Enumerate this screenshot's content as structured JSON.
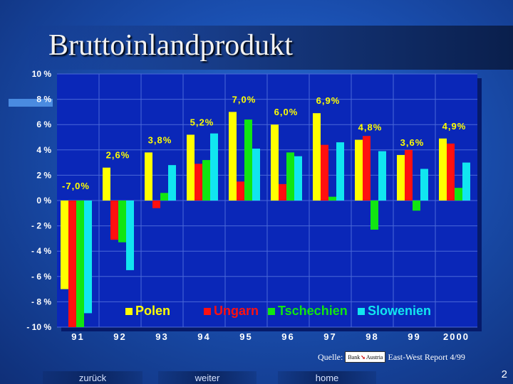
{
  "slide": {
    "title": "Bruttoinlandprodukt",
    "source_prefix": "Quelle:",
    "source_logo_text_1": "Bank",
    "source_logo_text_2": "Austria",
    "source_suffix": "East-West Report 4/99",
    "nav": {
      "back": "zurück",
      "next": "weiter",
      "home": "home"
    },
    "page_number": "2"
  },
  "colors": {
    "Polen": "#ffff00",
    "Ungarn": "#ff1010",
    "Tschechien": "#11e611",
    "Slowenien": "#11e6f0",
    "plot_bg": "#0a27b8",
    "grid": "#4a68d8"
  },
  "chart_data": {
    "type": "bar",
    "title": "Bruttoinlandprodukt",
    "categories": [
      "91",
      "92",
      "93",
      "94",
      "95",
      "96",
      "97",
      "98",
      "99",
      "2000"
    ],
    "series": [
      {
        "name": "Polen",
        "values": [
          -7.0,
          2.6,
          3.8,
          5.2,
          7.0,
          6.0,
          6.9,
          4.8,
          3.6,
          4.9
        ]
      },
      {
        "name": "Ungarn",
        "values": [
          -10.0,
          -3.1,
          -0.6,
          2.9,
          1.5,
          1.3,
          4.4,
          5.1,
          4.0,
          4.5
        ]
      },
      {
        "name": "Tschechien",
        "values": [
          -10.0,
          -3.3,
          0.6,
          3.2,
          6.4,
          3.8,
          0.3,
          -2.3,
          -0.8,
          1.0
        ]
      },
      {
        "name": "Slowenien",
        "values": [
          -8.9,
          -5.5,
          2.8,
          5.3,
          4.1,
          3.5,
          4.6,
          3.9,
          2.5,
          3.0
        ]
      }
    ],
    "data_labels": [
      "-7,0%",
      "2,6%",
      "3,8%",
      "5,2%",
      "7,0%",
      "6,0%",
      "6,9%",
      "4,8%",
      "3,6%",
      "4,9%"
    ],
    "yticks": [
      10,
      8,
      6,
      4,
      2,
      0,
      -2,
      -4,
      -6,
      -8,
      -10
    ],
    "ytick_labels": [
      "10 %",
      "8 %",
      "6 %",
      "4 %",
      "2 %",
      "0 %",
      "- 2 %",
      "- 4 %",
      "- 6 %",
      "- 8 %",
      "- 10 %"
    ],
    "ylim": [
      -10,
      10
    ],
    "grid": true,
    "legend": [
      "Polen",
      "Ungarn",
      "Tschechien",
      "Slowenien"
    ],
    "legend_position": "bottom-right"
  }
}
